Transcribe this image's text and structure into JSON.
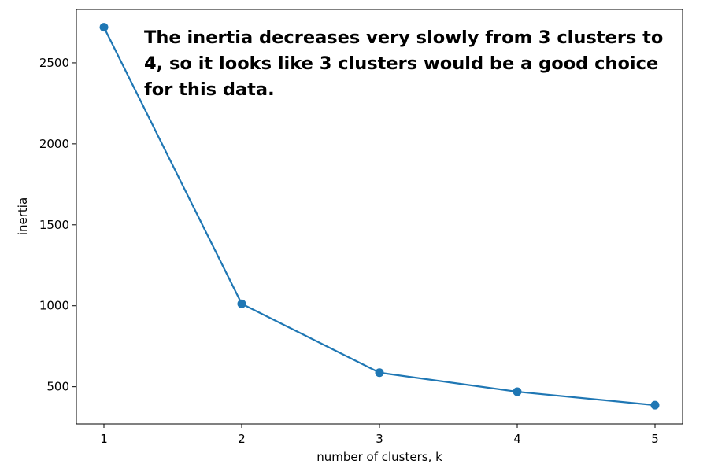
{
  "chart_data": {
    "type": "line",
    "x": [
      1,
      2,
      3,
      4,
      5
    ],
    "series": [
      {
        "values": [
          2720,
          1012,
          587,
          469,
          386
        ],
        "color": "#1f77b4"
      }
    ],
    "xlabel": "number of clusters, k",
    "ylabel": "inertia",
    "xlim": [
      0.8,
      5.2
    ],
    "ylim": [
      270,
      2830
    ],
    "xticks": [
      1,
      2,
      3,
      4,
      5
    ],
    "yticks": [
      500,
      1000,
      1500,
      2000,
      2500
    ],
    "grid": false,
    "markers": true,
    "annotation": {
      "lines": [
        "The inertia decreases very slowly from 3 clusters to",
        "4, so it looks like 3 clusters would be a good choice",
        "for this data."
      ]
    }
  }
}
